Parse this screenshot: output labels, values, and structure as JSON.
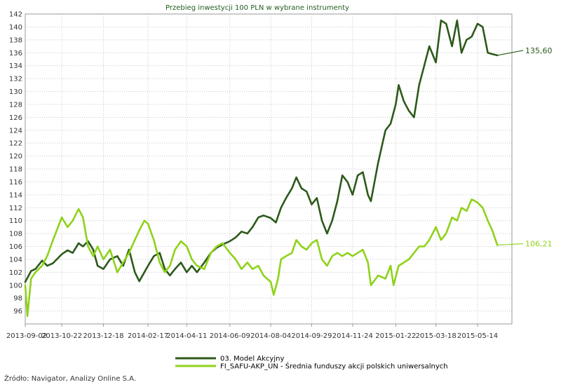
{
  "chart_data": {
    "type": "line",
    "title": "Przebieg inwestycji 100 PLN w wybrane instrumenty",
    "xlabel": "",
    "ylabel": "",
    "ylim": [
      94,
      142
    ],
    "y_ticks": [
      96,
      98,
      100,
      102,
      104,
      106,
      108,
      110,
      112,
      114,
      116,
      118,
      120,
      122,
      124,
      126,
      128,
      130,
      132,
      134,
      136,
      138,
      140,
      142
    ],
    "x_range": [
      "2013-09-02",
      "2015-06-30"
    ],
    "x_ticks": [
      "2013-09-02",
      "2013-10-22",
      "2013-12-18",
      "2014-02-17",
      "2014-04-11",
      "2014-06-09",
      "2014-08-04",
      "2014-09-29",
      "2014-11-24",
      "2015-01-22",
      "2015-03-18",
      "2015-05-14"
    ],
    "grid": true,
    "legend_position": "bottom",
    "series": [
      {
        "name": "03. Model Akcyjny",
        "color": "#2d5a1b",
        "end_label": "135,60",
        "points": [
          [
            "2013-09-02",
            100.5
          ],
          [
            "2013-09-10",
            102.2
          ],
          [
            "2013-09-16",
            102.5
          ],
          [
            "2013-09-25",
            103.8
          ],
          [
            "2013-10-02",
            103.0
          ],
          [
            "2013-10-10",
            103.4
          ],
          [
            "2013-10-22",
            104.8
          ],
          [
            "2013-10-30",
            105.4
          ],
          [
            "2013-11-06",
            105.0
          ],
          [
            "2013-11-14",
            106.5
          ],
          [
            "2013-11-20",
            106.0
          ],
          [
            "2013-11-27",
            106.8
          ],
          [
            "2013-12-04",
            105.5
          ],
          [
            "2013-12-10",
            103.0
          ],
          [
            "2013-12-18",
            102.5
          ],
          [
            "2013-12-27",
            104.0
          ],
          [
            "2014-01-06",
            104.5
          ],
          [
            "2014-01-14",
            103.0
          ],
          [
            "2014-01-22",
            105.5
          ],
          [
            "2014-01-30",
            102.0
          ],
          [
            "2014-02-05",
            100.6
          ],
          [
            "2014-02-12",
            102.0
          ],
          [
            "2014-02-17",
            103.0
          ],
          [
            "2014-02-25",
            104.5
          ],
          [
            "2014-03-05",
            105.0
          ],
          [
            "2014-03-12",
            102.5
          ],
          [
            "2014-03-19",
            101.5
          ],
          [
            "2014-03-26",
            102.5
          ],
          [
            "2014-04-03",
            103.5
          ],
          [
            "2014-04-11",
            102.0
          ],
          [
            "2014-04-18",
            103.0
          ],
          [
            "2014-04-25",
            102.0
          ],
          [
            "2014-05-05",
            103.5
          ],
          [
            "2014-05-14",
            105.0
          ],
          [
            "2014-05-22",
            105.8
          ],
          [
            "2014-05-30",
            106.3
          ],
          [
            "2014-06-09",
            106.8
          ],
          [
            "2014-06-17",
            107.4
          ],
          [
            "2014-06-25",
            108.3
          ],
          [
            "2014-07-03",
            108.0
          ],
          [
            "2014-07-10",
            109.0
          ],
          [
            "2014-07-18",
            110.5
          ],
          [
            "2014-07-25",
            110.8
          ],
          [
            "2014-08-04",
            110.4
          ],
          [
            "2014-08-11",
            109.7
          ],
          [
            "2014-08-18",
            112.0
          ],
          [
            "2014-08-25",
            113.5
          ],
          [
            "2014-09-02",
            115.0
          ],
          [
            "2014-09-08",
            116.7
          ],
          [
            "2014-09-15",
            115.0
          ],
          [
            "2014-09-22",
            114.5
          ],
          [
            "2014-09-29",
            112.5
          ],
          [
            "2014-10-06",
            113.5
          ],
          [
            "2014-10-13",
            110.0
          ],
          [
            "2014-10-20",
            108.0
          ],
          [
            "2014-10-27",
            110.0
          ],
          [
            "2014-11-03",
            113.0
          ],
          [
            "2014-11-10",
            117.0
          ],
          [
            "2014-11-17",
            116.0
          ],
          [
            "2014-11-24",
            114.0
          ],
          [
            "2014-12-01",
            117.0
          ],
          [
            "2014-12-08",
            117.5
          ],
          [
            "2014-12-15",
            114.0
          ],
          [
            "2014-12-19",
            113.0
          ],
          [
            "2014-12-29",
            119.0
          ],
          [
            "2015-01-08",
            124.0
          ],
          [
            "2015-01-15",
            125.0
          ],
          [
            "2015-01-22",
            128.0
          ],
          [
            "2015-01-26",
            131.0
          ],
          [
            "2015-02-02",
            128.5
          ],
          [
            "2015-02-09",
            127.0
          ],
          [
            "2015-02-16",
            126.0
          ],
          [
            "2015-02-23",
            131.0
          ],
          [
            "2015-03-02",
            134.0
          ],
          [
            "2015-03-09",
            137.0
          ],
          [
            "2015-03-18",
            134.5
          ],
          [
            "2015-03-25",
            141.0
          ],
          [
            "2015-04-01",
            140.5
          ],
          [
            "2015-04-09",
            137.0
          ],
          [
            "2015-04-16",
            141.0
          ],
          [
            "2015-04-22",
            136.0
          ],
          [
            "2015-04-29",
            138.0
          ],
          [
            "2015-05-06",
            138.5
          ],
          [
            "2015-05-14",
            140.5
          ],
          [
            "2015-05-21",
            140.0
          ],
          [
            "2015-05-28",
            136.0
          ],
          [
            "2015-06-03",
            135.8
          ],
          [
            "2015-06-10",
            135.6
          ]
        ]
      },
      {
        "name": "FI_SAFU-AKP_UN - Średnia funduszy akcji polskich uniwersalnych",
        "color": "#8fd21a",
        "end_label": "106,21",
        "points": [
          [
            "2013-09-02",
            100.0
          ],
          [
            "2013-09-05",
            95.2
          ],
          [
            "2013-09-10",
            101.0
          ],
          [
            "2013-09-16",
            102.0
          ],
          [
            "2013-09-25",
            103.0
          ],
          [
            "2013-10-02",
            104.5
          ],
          [
            "2013-10-10",
            107.0
          ],
          [
            "2013-10-22",
            110.5
          ],
          [
            "2013-10-30",
            109.0
          ],
          [
            "2013-11-06",
            110.0
          ],
          [
            "2013-11-14",
            111.8
          ],
          [
            "2013-11-20",
            110.5
          ],
          [
            "2013-11-27",
            106.0
          ],
          [
            "2013-12-04",
            104.5
          ],
          [
            "2013-12-10",
            106.0
          ],
          [
            "2013-12-18",
            104.0
          ],
          [
            "2013-12-27",
            105.5
          ],
          [
            "2014-01-06",
            102.0
          ],
          [
            "2014-01-14",
            103.5
          ],
          [
            "2014-01-22",
            105.0
          ],
          [
            "2014-01-30",
            107.0
          ],
          [
            "2014-02-05",
            108.5
          ],
          [
            "2014-02-12",
            110.0
          ],
          [
            "2014-02-17",
            109.5
          ],
          [
            "2014-02-25",
            107.0
          ],
          [
            "2014-03-05",
            103.5
          ],
          [
            "2014-03-12",
            102.0
          ],
          [
            "2014-03-19",
            103.0
          ],
          [
            "2014-03-26",
            105.5
          ],
          [
            "2014-04-03",
            106.8
          ],
          [
            "2014-04-11",
            106.0
          ],
          [
            "2014-04-18",
            104.0
          ],
          [
            "2014-04-25",
            103.0
          ],
          [
            "2014-05-05",
            102.5
          ],
          [
            "2014-05-14",
            105.0
          ],
          [
            "2014-05-22",
            106.0
          ],
          [
            "2014-05-30",
            106.5
          ],
          [
            "2014-06-09",
            105.0
          ],
          [
            "2014-06-17",
            104.0
          ],
          [
            "2014-06-25",
            102.5
          ],
          [
            "2014-07-03",
            103.5
          ],
          [
            "2014-07-10",
            102.5
          ],
          [
            "2014-07-18",
            103.0
          ],
          [
            "2014-07-25",
            101.5
          ],
          [
            "2014-08-04",
            100.5
          ],
          [
            "2014-08-08",
            98.5
          ],
          [
            "2014-08-14",
            101.0
          ],
          [
            "2014-08-18",
            104.0
          ],
          [
            "2014-08-25",
            104.5
          ],
          [
            "2014-09-02",
            105.0
          ],
          [
            "2014-09-08",
            107.0
          ],
          [
            "2014-09-15",
            106.0
          ],
          [
            "2014-09-22",
            105.5
          ],
          [
            "2014-09-29",
            106.5
          ],
          [
            "2014-10-06",
            107.0
          ],
          [
            "2014-10-13",
            104.0
          ],
          [
            "2014-10-20",
            103.0
          ],
          [
            "2014-10-27",
            104.5
          ],
          [
            "2014-11-03",
            105.0
          ],
          [
            "2014-11-10",
            104.5
          ],
          [
            "2014-11-17",
            105.0
          ],
          [
            "2014-11-24",
            104.5
          ],
          [
            "2014-12-01",
            105.0
          ],
          [
            "2014-12-08",
            105.5
          ],
          [
            "2014-12-15",
            103.5
          ],
          [
            "2014-12-19",
            100.0
          ],
          [
            "2014-12-29",
            101.5
          ],
          [
            "2015-01-08",
            101.0
          ],
          [
            "2015-01-15",
            103.0
          ],
          [
            "2015-01-19",
            100.0
          ],
          [
            "2015-01-26",
            103.0
          ],
          [
            "2015-02-02",
            103.5
          ],
          [
            "2015-02-09",
            104.0
          ],
          [
            "2015-02-16",
            105.0
          ],
          [
            "2015-02-23",
            106.0
          ],
          [
            "2015-03-02",
            106.0
          ],
          [
            "2015-03-09",
            107.0
          ],
          [
            "2015-03-18",
            109.0
          ],
          [
            "2015-03-25",
            107.0
          ],
          [
            "2015-04-01",
            108.0
          ],
          [
            "2015-04-09",
            110.5
          ],
          [
            "2015-04-16",
            110.0
          ],
          [
            "2015-04-22",
            112.0
          ],
          [
            "2015-04-29",
            111.5
          ],
          [
            "2015-05-06",
            113.3
          ],
          [
            "2015-05-14",
            112.8
          ],
          [
            "2015-05-21",
            112.0
          ],
          [
            "2015-05-28",
            110.0
          ],
          [
            "2015-06-03",
            108.5
          ],
          [
            "2015-06-10",
            106.21
          ]
        ]
      }
    ]
  },
  "source": "Źródło: Navigator, Analizy Online S.A."
}
